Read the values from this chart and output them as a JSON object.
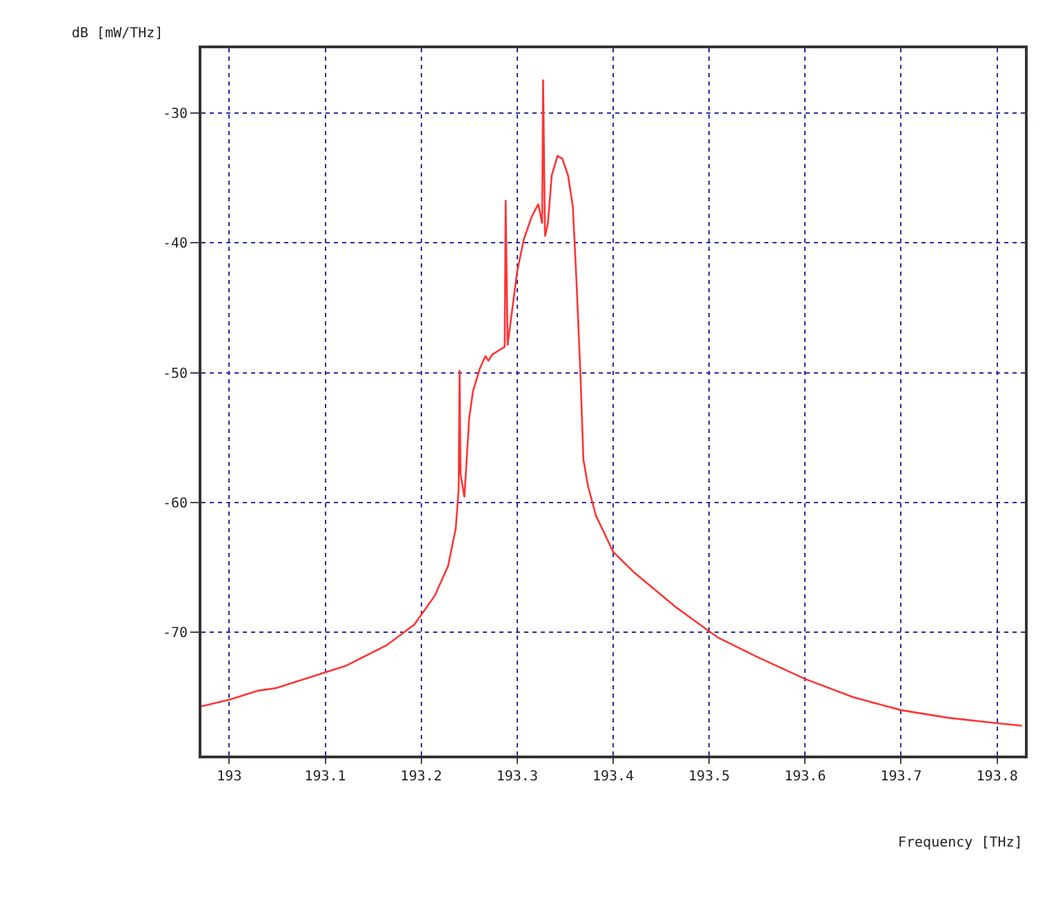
{
  "chart_data": {
    "type": "line",
    "xlabel": "Frequency [THz]",
    "ylabel": "dB [mW/THz]",
    "xlim": [
      192.971,
      193.829
    ],
    "xticks": [
      193,
      193.1,
      193.2,
      193.3,
      193.4,
      193.5,
      193.6,
      193.7,
      193.8
    ],
    "ylim": [
      -79.5,
      -25
    ],
    "yticks": [
      -30,
      -40,
      -50,
      -60,
      -70
    ],
    "grid": true,
    "marker": "none",
    "line_style": "solid",
    "series": [
      {
        "color": "#ff3333",
        "x": [
          192.971,
          193.0,
          193.03,
          193.049,
          193.121,
          193.164,
          193.193,
          193.214,
          193.228,
          193.236,
          193.239,
          193.24,
          193.241,
          193.245,
          193.25,
          193.254,
          193.261,
          193.267,
          193.27,
          193.274,
          193.287,
          193.288,
          193.29,
          193.3,
          193.307,
          193.315,
          193.322,
          193.326,
          193.327,
          193.329,
          193.332,
          193.336,
          193.342,
          193.347,
          193.353,
          193.358,
          193.362,
          193.366,
          193.369,
          193.374,
          193.382,
          193.4,
          193.422,
          193.466,
          193.509,
          193.55,
          193.6,
          193.65,
          193.7,
          193.75,
          193.8,
          193.826
        ],
        "values": [
          -75.7,
          -75.2,
          -74.5,
          -74.3,
          -72.6,
          -71.0,
          -69.4,
          -67.2,
          -64.9,
          -62.0,
          -59.0,
          -49.8,
          -57.8,
          -59.6,
          -53.5,
          -51.4,
          -49.7,
          -48.7,
          -49.1,
          -48.6,
          -48.0,
          -36.7,
          -47.9,
          -42.2,
          -39.7,
          -38.0,
          -37.0,
          -38.5,
          -27.4,
          -39.5,
          -38.5,
          -34.8,
          -33.3,
          -33.5,
          -34.8,
          -37.2,
          -43.3,
          -50.3,
          -56.7,
          -58.8,
          -61.0,
          -63.8,
          -65.4,
          -68.1,
          -70.4,
          -71.9,
          -73.6,
          -75.0,
          -76.0,
          -76.6,
          -77.0,
          -77.2
        ]
      }
    ]
  }
}
